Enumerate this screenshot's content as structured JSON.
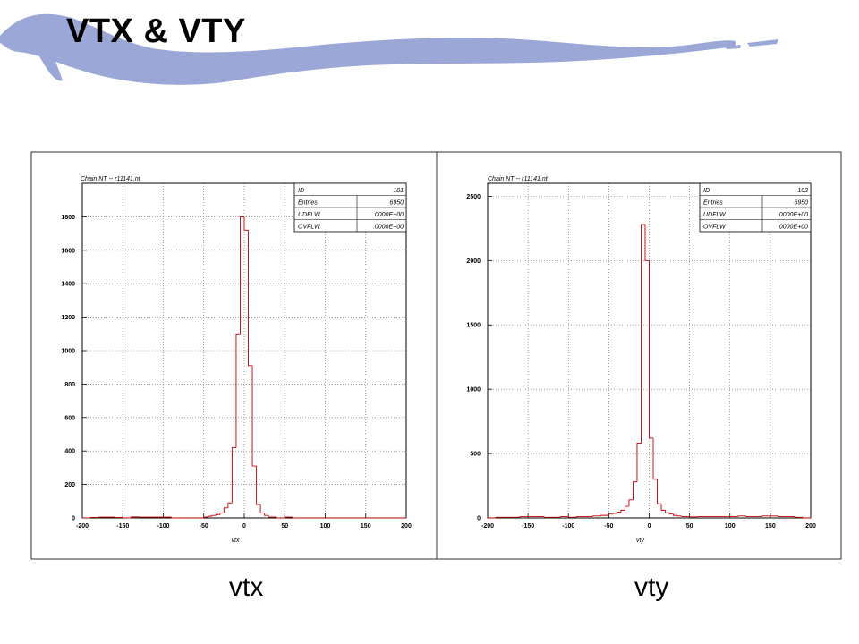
{
  "slide": {
    "title": "VTX & VTY",
    "brand_color": "#9ba7d6",
    "captions": [
      "vtx",
      "vty"
    ]
  },
  "chart_data": [
    {
      "type": "bar",
      "subtype": "step-histogram",
      "title": "Chain NT -- r11141.nt",
      "xlabel": "vtx",
      "ylabel": "",
      "xlim": [
        -200,
        200
      ],
      "ylim": [
        0,
        2000
      ],
      "xticks": [
        -200,
        -150,
        -100,
        -50,
        0,
        50,
        100,
        150,
        200
      ],
      "yticks": [
        0,
        200,
        400,
        600,
        800,
        1000,
        1200,
        1400,
        1600,
        1800
      ],
      "grid": true,
      "line_color": "#c00000",
      "stats_box": {
        "position": "top-right",
        "rows": [
          {
            "label": "ID",
            "value": "101"
          },
          {
            "label": "Entries",
            "value": "6950"
          },
          {
            "label": "UDFLW",
            "value": ".0000E+00"
          },
          {
            "label": "OVFLW",
            "value": ".0000E+00"
          }
        ]
      },
      "bin_edges": [
        -200,
        -190,
        -180,
        -170,
        -160,
        -150,
        -140,
        -130,
        -120,
        -110,
        -100,
        -90,
        -80,
        -70,
        -60,
        -50,
        -45,
        -40,
        -35,
        -30,
        -25,
        -20,
        -15,
        -10,
        -5,
        0,
        5,
        10,
        15,
        20,
        25,
        30,
        35,
        40,
        45,
        50,
        60,
        70,
        80,
        90,
        100,
        110,
        120,
        130,
        140,
        150,
        160,
        170,
        180,
        190,
        200
      ],
      "values": [
        0,
        3,
        5,
        5,
        3,
        0,
        6,
        5,
        5,
        5,
        5,
        0,
        0,
        0,
        0,
        5,
        10,
        15,
        20,
        30,
        60,
        90,
        420,
        1100,
        1800,
        1720,
        910,
        310,
        80,
        30,
        15,
        5,
        5,
        0,
        0,
        5,
        0,
        0,
        0,
        0,
        0,
        0,
        0,
        0,
        0,
        0,
        0,
        0,
        0,
        0
      ]
    },
    {
      "type": "bar",
      "subtype": "step-histogram",
      "title": "Chain NT -- r11141.nt",
      "xlabel": "vty",
      "ylabel": "",
      "xlim": [
        -200,
        200
      ],
      "ylim": [
        0,
        2600
      ],
      "xticks": [
        -200,
        -150,
        -100,
        -50,
        0,
        50,
        100,
        150,
        200
      ],
      "yticks": [
        0,
        500,
        1000,
        1500,
        2000,
        2500
      ],
      "grid": true,
      "line_color": "#c00000",
      "stats_box": {
        "position": "top-right",
        "rows": [
          {
            "label": "ID",
            "value": "102"
          },
          {
            "label": "Entries",
            "value": "6950"
          },
          {
            "label": "UDFLW",
            "value": ".0000E+00"
          },
          {
            "label": "OVFLW",
            "value": ".0000E+00"
          }
        ]
      },
      "bin_edges": [
        -200,
        -190,
        -180,
        -170,
        -160,
        -150,
        -140,
        -130,
        -120,
        -110,
        -100,
        -90,
        -80,
        -70,
        -60,
        -50,
        -45,
        -40,
        -35,
        -30,
        -25,
        -20,
        -15,
        -10,
        -5,
        0,
        5,
        10,
        15,
        20,
        25,
        30,
        35,
        40,
        45,
        50,
        60,
        70,
        80,
        90,
        100,
        110,
        120,
        130,
        140,
        150,
        160,
        170,
        180,
        190,
        200
      ],
      "values": [
        0,
        5,
        5,
        5,
        10,
        10,
        10,
        5,
        5,
        10,
        5,
        10,
        10,
        15,
        20,
        30,
        35,
        45,
        60,
        90,
        140,
        280,
        580,
        2280,
        2000,
        620,
        300,
        110,
        60,
        40,
        30,
        20,
        15,
        10,
        10,
        8,
        10,
        10,
        10,
        10,
        10,
        15,
        10,
        10,
        15,
        15,
        10,
        10,
        5,
        0
      ]
    }
  ]
}
